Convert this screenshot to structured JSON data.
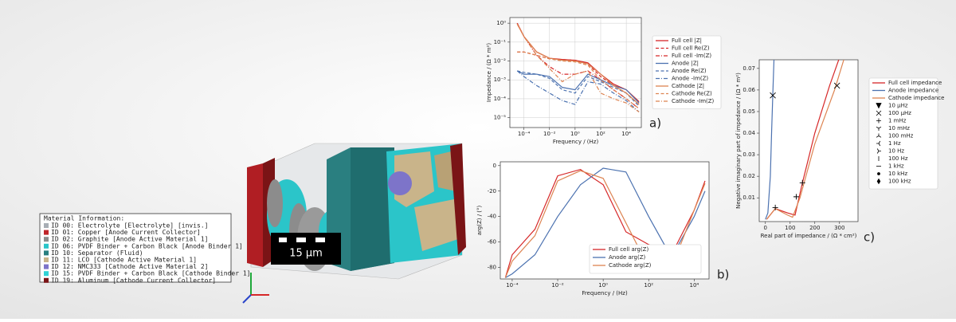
{
  "material_info": {
    "title": "Material Information:",
    "items": [
      {
        "label": "ID 00: Electrolyte [Electrolyte] [invis.]",
        "color": "#a8aeb5"
      },
      {
        "label": "ID 01: Copper [Anode Current Collector]",
        "color": "#c0262b"
      },
      {
        "label": "ID 02: Graphite [Anode Active Material 1]",
        "color": "#8c8c8c"
      },
      {
        "label": "ID 06: PVDF Binder + Carbon Black [Anode Binder 1]",
        "color": "#2bc5c9"
      },
      {
        "label": "ID 10: Separator (Fluid)",
        "color": "#2a7f80"
      },
      {
        "label": "ID 11: LCO [Cathode Active Material 1]",
        "color": "#c9b48a"
      },
      {
        "label": "ID 12: NMC333 [Cathode Active Material 2]",
        "color": "#7d74c9"
      },
      {
        "label": "ID 15: PVDF Binder + Carbon Black [Cathode Binder 1]",
        "color": "#31d3d6"
      },
      {
        "label": "ID 19: Aluminum [Cathode Current Collector]",
        "color": "#7a1416"
      }
    ]
  },
  "scale_bar": "15 µm",
  "chart_data": [
    {
      "type": "line",
      "panel": "a)",
      "xlabel": "Frequency / (Hz)",
      "ylabel": "Impedance / (Ω * m²)",
      "xlog": true,
      "ylog": true,
      "grid": true,
      "legend": "outside right",
      "xlim": [
        8e-06,
        150000.0
      ],
      "ylim": [
        3e-06,
        2
      ],
      "xticks": [
        {
          "value": 0.0001,
          "label": "10⁻⁴"
        },
        {
          "value": 0.01,
          "label": "10⁻²"
        },
        {
          "value": 1,
          "label": "10⁰"
        },
        {
          "value": 100,
          "label": "10²"
        },
        {
          "value": 10000,
          "label": "10⁴"
        }
      ],
      "yticks": [
        {
          "value": 1,
          "label": "10⁰"
        },
        {
          "value": 0.1,
          "label": "10⁻¹"
        },
        {
          "value": 0.01,
          "label": "10⁻²"
        },
        {
          "value": 0.001,
          "label": "10⁻³"
        },
        {
          "value": 0.0001,
          "label": "10⁻⁴"
        },
        {
          "value": 1e-05,
          "label": "10⁻⁵"
        }
      ],
      "x": [
        3e-05,
        0.0001,
        0.001,
        0.01,
        0.1,
        1,
        10,
        100,
        1000,
        10000,
        100000
      ],
      "series": [
        {
          "name": "Full cell |Z|",
          "color": "#d62728",
          "style": "solid",
          "values": [
            1,
            0.2,
            0.03,
            0.014,
            0.012,
            0.011,
            0.008,
            0.002,
            0.0006,
            0.0003,
            7e-05
          ]
        },
        {
          "name": "Full cell Re(Z)",
          "color": "#d62728",
          "style": "dashed",
          "values": [
            0.03,
            0.03,
            0.02,
            0.013,
            0.012,
            0.011,
            0.007,
            0.0015,
            0.0005,
            0.0002,
            5e-05
          ]
        },
        {
          "name": "Full cell -Im(Z)",
          "color": "#d62728",
          "style": "dashdot",
          "values": [
            1,
            0.2,
            0.02,
            0.005,
            0.002,
            0.002,
            0.003,
            0.001,
            0.0003,
            0.0001,
            3e-05
          ]
        },
        {
          "name": "Anode |Z|",
          "color": "#4c72b0",
          "style": "solid",
          "values": [
            0.003,
            0.002,
            0.002,
            0.0015,
            0.0004,
            0.0003,
            0.002,
            0.001,
            0.0005,
            0.0003,
            6e-05
          ]
        },
        {
          "name": "Anode Re(Z)",
          "color": "#4c72b0",
          "style": "dashed",
          "values": [
            0.003,
            0.0025,
            0.002,
            0.0012,
            0.0003,
            0.0002,
            0.0015,
            0.0008,
            0.0004,
            0.0002,
            4e-05
          ]
        },
        {
          "name": "Anode -Im(Z)",
          "color": "#4c72b0",
          "style": "dashdot",
          "values": [
            0.003,
            0.0015,
            0.0005,
            0.0002,
            8e-05,
            5e-05,
            0.0008,
            0.0006,
            0.0002,
            8e-05,
            2e-05
          ]
        },
        {
          "name": "Cathode |Z|",
          "color": "#dd8452",
          "style": "solid",
          "values": [
            0.9,
            0.2,
            0.03,
            0.014,
            0.011,
            0.01,
            0.007,
            0.002,
            0.0005,
            0.0002,
            5e-05
          ]
        },
        {
          "name": "Cathode Re(Z)",
          "color": "#dd8452",
          "style": "dashed",
          "values": [
            0.03,
            0.03,
            0.02,
            0.013,
            0.01,
            0.009,
            0.006,
            0.001,
            0.0003,
            0.0001,
            3e-05
          ]
        },
        {
          "name": "Cathode -Im(Z)",
          "color": "#dd8452",
          "style": "dashdot",
          "values": [
            0.9,
            0.2,
            0.02,
            0.004,
            0.0008,
            0.002,
            0.003,
            0.0002,
            0.0001,
            6e-05,
            2e-05
          ]
        }
      ]
    },
    {
      "type": "line",
      "panel": "b)",
      "xlabel": "Frequency / (Hz)",
      "ylabel": "arg(Z) / (°)",
      "xlog": true,
      "ylog": false,
      "grid": false,
      "legend": "lower right",
      "xlim": [
        3e-05,
        45000
      ],
      "ylim": [
        -89,
        3
      ],
      "xticks": [
        {
          "value": 0.0001,
          "label": "10⁻⁴"
        },
        {
          "value": 0.01,
          "label": "10⁻²"
        },
        {
          "value": 1,
          "label": "10⁰"
        },
        {
          "value": 100,
          "label": "10²"
        },
        {
          "value": 10000,
          "label": "10⁴"
        }
      ],
      "yticks": [
        0,
        -20,
        -40,
        -60,
        -80
      ],
      "x": [
        5e-05,
        0.0001,
        0.001,
        0.01,
        0.1,
        1,
        10,
        100,
        1000,
        10000,
        30000
      ],
      "series": [
        {
          "name": "Full cell arg(Z)",
          "color": "#d62728",
          "style": "solid",
          "values": [
            -88,
            -70,
            -50,
            -8,
            -3,
            -15,
            -52,
            -62,
            -70,
            -35,
            -12
          ]
        },
        {
          "name": "Anode arg(Z)",
          "color": "#4c72b0",
          "style": "solid",
          "values": [
            -88,
            -85,
            -70,
            -40,
            -15,
            -2,
            -5,
            -40,
            -72,
            -40,
            -20
          ]
        },
        {
          "name": "Cathode arg(Z)",
          "color": "#dd8452",
          "style": "solid",
          "values": [
            -88,
            -75,
            -55,
            -12,
            -4,
            -10,
            -45,
            -80,
            -80,
            -35,
            -14
          ]
        }
      ]
    },
    {
      "type": "line",
      "panel": "c)",
      "xlabel": "Real part of impedance / (Ω * cm²)",
      "ylabel": "Negative imaginary part of impedance / (Ω * m²)",
      "xlog": false,
      "ylog": false,
      "grid": false,
      "legend": "outside right",
      "xlim": [
        -25,
        375
      ],
      "ylim": [
        -0.001,
        0.074
      ],
      "xticks": [
        0,
        100,
        200,
        300
      ],
      "yticks": [
        0.01,
        0.02,
        0.03,
        0.04,
        0.05,
        0.06,
        0.07
      ],
      "series": [
        {
          "name": "Full cell impedance",
          "color": "#d62728",
          "style": "solid",
          "x": [
            5,
            40,
            90,
            120,
            150,
            200,
            260,
            300
          ],
          "values": [
            0,
            0.005,
            0.003,
            0.002,
            0.017,
            0.04,
            0.062,
            0.075
          ]
        },
        {
          "name": "Anode impedance",
          "color": "#4c72b0",
          "style": "solid",
          "x": [
            0,
            10,
            20,
            25,
            30,
            35
          ],
          "values": [
            0,
            0.003,
            0.02,
            0.04,
            0.058,
            0.075
          ]
        },
        {
          "name": "Cathode impedance",
          "color": "#dd8452",
          "style": "solid",
          "x": [
            5,
            40,
            90,
            110,
            140,
            200,
            280,
            320
          ],
          "values": [
            0,
            0.005,
            0.002,
            0.001,
            0.01,
            0.035,
            0.06,
            0.075
          ]
        }
      ],
      "marker_legend": [
        {
          "name": "10 µHz",
          "symbol": "v"
        },
        {
          "name": "100 µHz",
          "symbol": "x",
          "x": [
            30,
            290
          ],
          "y": [
            0.0575,
            0.062
          ]
        },
        {
          "name": "1 mHz",
          "symbol": "+",
          "x": [
            150,
            125,
            40
          ],
          "y": [
            0.017,
            0.0105,
            0.0055
          ]
        },
        {
          "name": "10 mHz",
          "symbol": "1"
        },
        {
          "name": "100 mHz",
          "symbol": "2"
        },
        {
          "name": "1 Hz",
          "symbol": "3"
        },
        {
          "name": "10 Hz",
          "symbol": "4"
        },
        {
          "name": "100 Hz",
          "symbol": "|"
        },
        {
          "name": "1 kHz",
          "symbol": "_"
        },
        {
          "name": "10 kHz",
          "symbol": "."
        },
        {
          "name": "100 kHz",
          "symbol": "d"
        }
      ]
    }
  ]
}
